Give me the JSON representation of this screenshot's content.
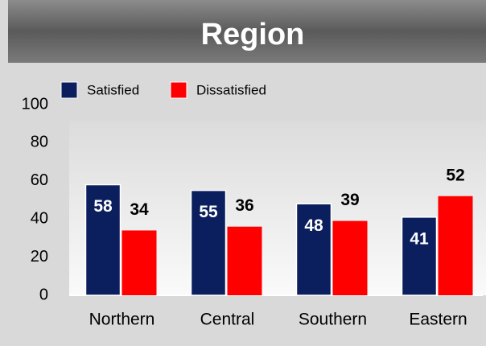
{
  "chart_data": {
    "type": "bar",
    "title": "Region",
    "categories": [
      "Northern",
      "Central",
      "Southern",
      "Eastern"
    ],
    "series": [
      {
        "name": "Satisfied",
        "color": "#0b1f5e",
        "values": [
          58,
          55,
          48,
          41
        ]
      },
      {
        "name": "Dissatisfied",
        "color": "#ff0000",
        "values": [
          34,
          36,
          39,
          52
        ]
      }
    ],
    "ylim": [
      0,
      100
    ],
    "yticks": [
      0,
      20,
      40,
      60,
      80,
      100
    ],
    "grid": false,
    "legend": "top-left"
  }
}
